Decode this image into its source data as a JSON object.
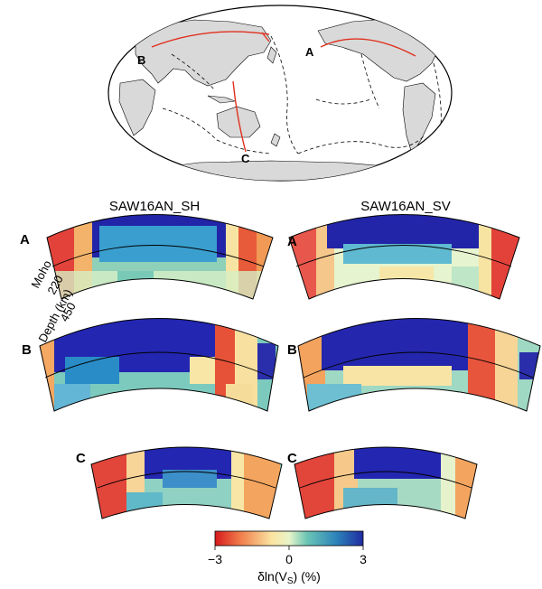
{
  "map": {
    "point_labels": [
      "A",
      "B",
      "C"
    ]
  },
  "columns": {
    "left_title": "SAW16AN_SH",
    "right_title": "SAW16AN_SV"
  },
  "cross_sections": {
    "labels": [
      "A",
      "B",
      "C"
    ],
    "axis_labels": {
      "moho": "Moho",
      "depth_220": "220",
      "depth_450": "450",
      "depth_title": "Depth (km)"
    }
  },
  "colorbar": {
    "tick_min": "−3",
    "tick_mid": "0",
    "tick_max": "3",
    "title": "δln(V",
    "title_sub": "S",
    "title_suffix": ") (%)",
    "colors": [
      "#d7191c",
      "#f07c4a",
      "#fbe3a0",
      "#e8f4c8",
      "#6cc6b5",
      "#2b83ba",
      "#202aa0"
    ]
  }
}
